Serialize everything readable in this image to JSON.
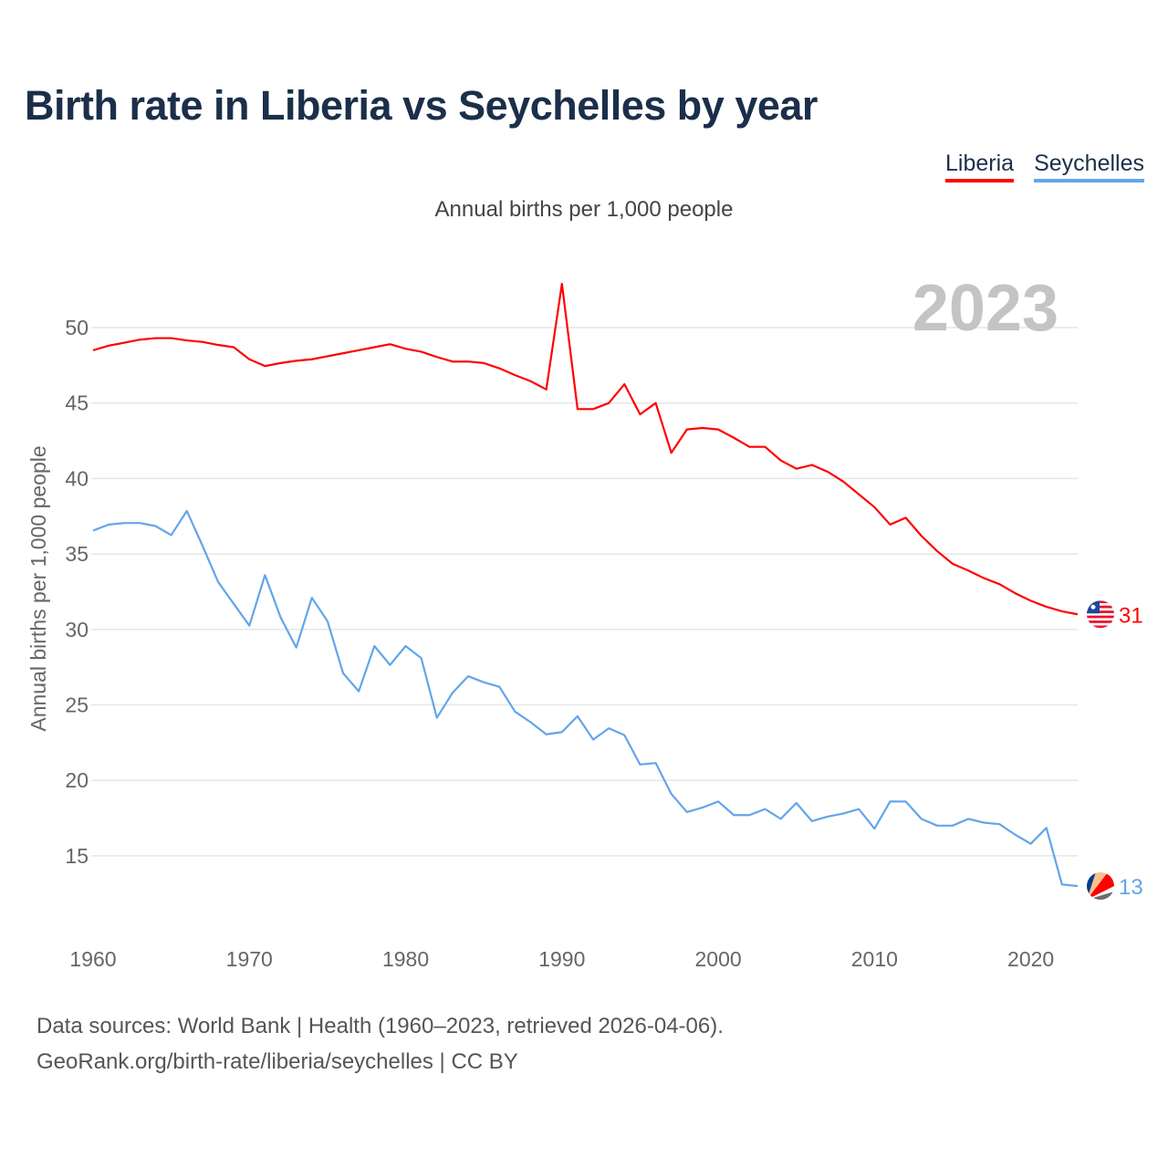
{
  "title": "Birth rate in Liberia vs Seychelles by year",
  "subtitle": "Annual births per 1,000 people",
  "year_watermark": "2023",
  "legend": [
    {
      "label": "Liberia",
      "color": "#ff0000"
    },
    {
      "label": "Seychelles",
      "color": "#63a5ea"
    }
  ],
  "footer": {
    "line1": "Data sources: World Bank | Health (1960–2023, retrieved 2026-04-06).",
    "line2": "GeoRank.org/birth-rate/liberia/seychelles | CC BY"
  },
  "chart_data": {
    "type": "line",
    "title": "Birth rate in Liberia vs Seychelles by year",
    "ylabel": "Annual births per 1,000 people",
    "xlabel": "",
    "xlim": [
      1960,
      2023
    ],
    "ylim": [
      11,
      54
    ],
    "x_ticks": [
      1960,
      1970,
      1980,
      1990,
      2000,
      2010,
      2020
    ],
    "y_ticks": [
      15,
      20,
      25,
      30,
      35,
      40,
      45,
      50
    ],
    "grid": true,
    "legend_position": "top-right",
    "x": [
      1960,
      1961,
      1962,
      1963,
      1964,
      1965,
      1966,
      1967,
      1968,
      1969,
      1970,
      1971,
      1972,
      1973,
      1974,
      1975,
      1976,
      1977,
      1978,
      1979,
      1980,
      1981,
      1982,
      1983,
      1984,
      1985,
      1986,
      1987,
      1988,
      1989,
      1990,
      1991,
      1992,
      1993,
      1994,
      1995,
      1996,
      1997,
      1998,
      1999,
      2000,
      2001,
      2002,
      2003,
      2004,
      2005,
      2006,
      2007,
      2008,
      2009,
      2010,
      2011,
      2012,
      2013,
      2014,
      2015,
      2016,
      2017,
      2018,
      2019,
      2020,
      2021,
      2022,
      2023
    ],
    "series": [
      {
        "name": "Liberia",
        "color": "#ff0000",
        "end_label": "31",
        "values": [
          48.5,
          48.8,
          49.0,
          49.2,
          49.3,
          49.3,
          49.15,
          49.05,
          48.85,
          48.7,
          47.9,
          47.45,
          47.65,
          47.8,
          47.9,
          48.1,
          48.3,
          48.5,
          48.7,
          48.9,
          48.6,
          48.4,
          48.05,
          47.75,
          47.75,
          47.65,
          47.3,
          46.85,
          46.45,
          45.9,
          52.9,
          44.6,
          44.6,
          45.0,
          46.25,
          44.25,
          45.0,
          41.7,
          43.25,
          43.35,
          43.25,
          42.7,
          42.1,
          42.1,
          41.2,
          40.65,
          40.9,
          40.45,
          39.8,
          38.95,
          38.1,
          36.95,
          37.4,
          36.2,
          35.2,
          34.35,
          33.9,
          33.4,
          33.0,
          32.4,
          31.9,
          31.5,
          31.2,
          31.0
        ]
      },
      {
        "name": "Seychelles",
        "color": "#63a5ea",
        "end_label": "13",
        "values": [
          36.55,
          36.95,
          37.05,
          37.05,
          36.85,
          36.25,
          37.85,
          35.55,
          33.15,
          31.7,
          30.25,
          33.6,
          30.8,
          28.8,
          32.1,
          30.55,
          27.1,
          25.9,
          28.9,
          27.65,
          28.9,
          28.1,
          24.15,
          25.8,
          26.9,
          26.5,
          26.2,
          24.55,
          23.85,
          23.05,
          23.2,
          24.25,
          22.7,
          23.45,
          23.0,
          21.05,
          21.15,
          19.1,
          17.9,
          18.2,
          18.6,
          17.7,
          17.7,
          18.1,
          17.45,
          18.5,
          17.3,
          17.6,
          17.8,
          18.1,
          16.8,
          18.6,
          18.6,
          17.45,
          17.0,
          17.0,
          17.45,
          17.2,
          17.1,
          16.4,
          15.8,
          16.85,
          13.1,
          13.0
        ]
      }
    ]
  }
}
